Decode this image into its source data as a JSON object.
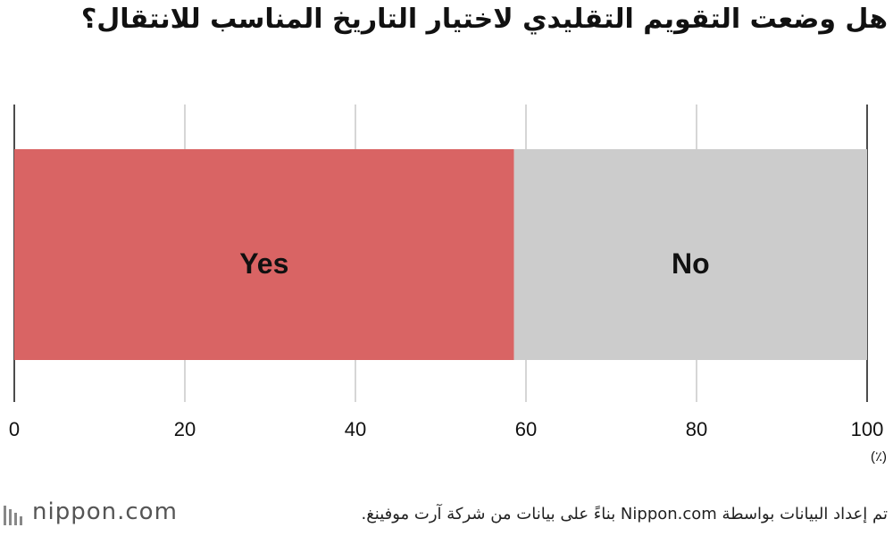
{
  "chart_data": {
    "type": "stacked-bar",
    "orientation": "horizontal",
    "title": "هل وضعت التقويم التقليدي لاختيار التاريخ المناسب للانتقال؟",
    "series": [
      {
        "name": "Yes",
        "color": "#d96464",
        "values": [
          58.6
        ]
      },
      {
        "name": "No",
        "color": "#cccccc",
        "values": [
          41.4
        ]
      }
    ],
    "xlim": [
      0,
      100
    ],
    "xticks": [
      0,
      20,
      40,
      60,
      80,
      100
    ],
    "grid": true,
    "unit_label": "(٪)",
    "source": "تم إعداد البيانات بواسطة Nippon.com بناءً على بيانات من شركة آرت موفينغ.",
    "logo": "nippon.com"
  }
}
